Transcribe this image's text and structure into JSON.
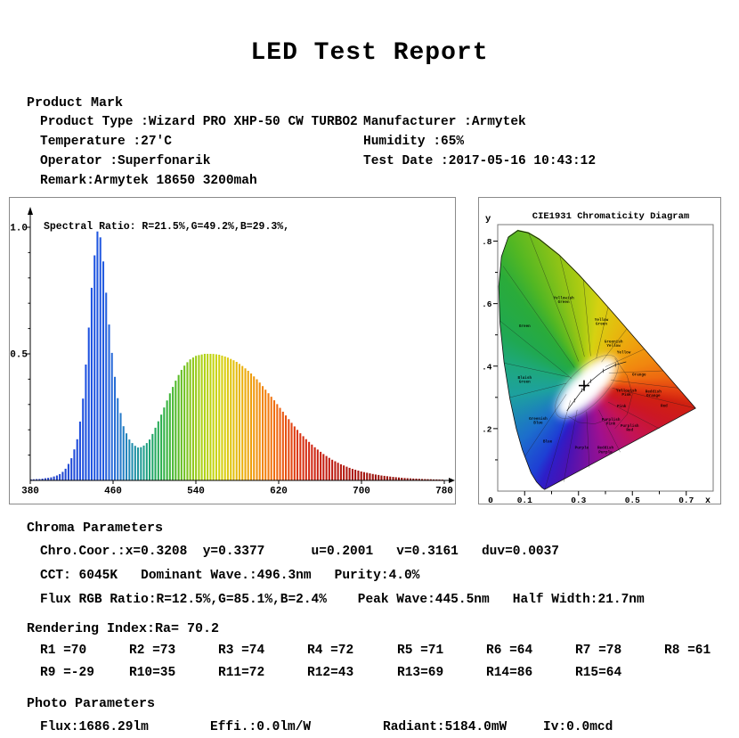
{
  "title": "LED Test Report",
  "product": {
    "heading": "Product Mark",
    "rows": [
      {
        "left": "Product Type :Wizard PRO XHP-50 CW TURBO2",
        "right": "Manufacturer :Armytek"
      },
      {
        "left": "Temperature :27'C",
        "right": "Humidity :65%"
      },
      {
        "left": "Operator :Superfonarik",
        "right": "Test Date :2017-05-16 10:43:12"
      },
      {
        "left": "Remark:Armytek 18650 3200mah",
        "right": ""
      }
    ]
  },
  "chroma": {
    "heading": "Chroma Parameters",
    "lines": [
      "Chro.Coor.:x=0.3208  y=0.3377      u=0.2001   v=0.3161   duv=0.0037",
      "CCT: 6045K   Dominant Wave.:496.3nm   Purity:4.0%",
      "Flux RGB Ratio:R=12.5%,G=85.1%,B=2.4%    Peak Wave:445.5nm   Half Width:21.7nm"
    ]
  },
  "rendering": {
    "heading": "Rendering Index:Ra= 70.2",
    "row1": [
      "R1 =70",
      "R2 =73",
      "R3 =74",
      "R4 =72",
      "R5 =71",
      "R6 =64",
      "R7 =78",
      "R8 =61"
    ],
    "row2": [
      "R9 =-29",
      "R10=35",
      "R11=72",
      "R12=43",
      "R13=69",
      "R14=86",
      "R15=64"
    ]
  },
  "photo": {
    "heading": "Photo Parameters",
    "items": [
      "Flux:1686.29lm",
      "Effi.:0.0lm/W",
      "Radiant:5184.0mW",
      "Iv:0.0mcd"
    ]
  },
  "chart_data": [
    {
      "type": "area",
      "name": "spectral-power-distribution",
      "annotation": "Spectral Ratio:  R=21.5%,G=49.2%,B=29.3%,",
      "xlim": [
        380,
        780
      ],
      "ylim": [
        0,
        1.05
      ],
      "x_ticks": [
        380,
        460,
        540,
        620,
        700,
        780
      ],
      "y_ticks": [
        0.5,
        1.0
      ],
      "peak_wavelength_nm": 445.5,
      "samples": [
        [
          380,
          0.004
        ],
        [
          390,
          0.006
        ],
        [
          400,
          0.012
        ],
        [
          405,
          0.018
        ],
        [
          410,
          0.028
        ],
        [
          415,
          0.05
        ],
        [
          420,
          0.09
        ],
        [
          425,
          0.155
        ],
        [
          430,
          0.28
        ],
        [
          435,
          0.52
        ],
        [
          440,
          0.8
        ],
        [
          444,
          0.97
        ],
        [
          446,
          1.0
        ],
        [
          449,
          0.93
        ],
        [
          452,
          0.8
        ],
        [
          456,
          0.62
        ],
        [
          460,
          0.46
        ],
        [
          465,
          0.31
        ],
        [
          470,
          0.215
        ],
        [
          475,
          0.165
        ],
        [
          480,
          0.14
        ],
        [
          484,
          0.13
        ],
        [
          488,
          0.132
        ],
        [
          492,
          0.145
        ],
        [
          496,
          0.165
        ],
        [
          500,
          0.2
        ],
        [
          505,
          0.245
        ],
        [
          510,
          0.295
        ],
        [
          515,
          0.345
        ],
        [
          520,
          0.39
        ],
        [
          525,
          0.43
        ],
        [
          530,
          0.46
        ],
        [
          535,
          0.48
        ],
        [
          540,
          0.492
        ],
        [
          548,
          0.5
        ],
        [
          556,
          0.5
        ],
        [
          562,
          0.497
        ],
        [
          570,
          0.487
        ],
        [
          578,
          0.472
        ],
        [
          585,
          0.452
        ],
        [
          592,
          0.428
        ],
        [
          600,
          0.395
        ],
        [
          608,
          0.355
        ],
        [
          616,
          0.315
        ],
        [
          624,
          0.272
        ],
        [
          632,
          0.23
        ],
        [
          640,
          0.19
        ],
        [
          648,
          0.157
        ],
        [
          656,
          0.127
        ],
        [
          664,
          0.102
        ],
        [
          672,
          0.081
        ],
        [
          680,
          0.064
        ],
        [
          690,
          0.047
        ],
        [
          700,
          0.035
        ],
        [
          710,
          0.026
        ],
        [
          720,
          0.019
        ],
        [
          730,
          0.014
        ],
        [
          740,
          0.01
        ],
        [
          750,
          0.0075
        ],
        [
          760,
          0.0055
        ],
        [
          770,
          0.004
        ],
        [
          780,
          0.003
        ]
      ],
      "color_stops": [
        [
          380,
          "#2a3fc0"
        ],
        [
          435,
          "#1c4fe0"
        ],
        [
          450,
          "#2059e0"
        ],
        [
          460,
          "#2a6cd8"
        ],
        [
          472,
          "#2383c0"
        ],
        [
          483,
          "#1e94a0"
        ],
        [
          492,
          "#1fa084"
        ],
        [
          500,
          "#23a862"
        ],
        [
          510,
          "#2fb143"
        ],
        [
          522,
          "#55bb28"
        ],
        [
          534,
          "#85c51a"
        ],
        [
          546,
          "#abd014"
        ],
        [
          558,
          "#c6d410"
        ],
        [
          568,
          "#d9cd0e"
        ],
        [
          578,
          "#e4bc0d"
        ],
        [
          588,
          "#ecaa0e"
        ],
        [
          598,
          "#f0940f"
        ],
        [
          608,
          "#f28010"
        ],
        [
          618,
          "#ee6810"
        ],
        [
          628,
          "#e64e11"
        ],
        [
          638,
          "#dc3812"
        ],
        [
          650,
          "#d22813"
        ],
        [
          662,
          "#c61f11"
        ],
        [
          676,
          "#b9190f"
        ],
        [
          692,
          "#aa140d"
        ],
        [
          710,
          "#9d110b"
        ],
        [
          740,
          "#92100a"
        ],
        [
          780,
          "#8a0e09"
        ]
      ]
    },
    {
      "type": "chromaticity",
      "name": "cie1931-diagram",
      "title": "CIE1931 Chromaticity Diagram",
      "xlabel": "x",
      "ylabel": "y",
      "origin_label": "0",
      "x_tick_values": [
        0.1,
        0.3,
        0.5,
        0.7
      ],
      "x_tick_labels": [
        "0.1",
        "0.3",
        "0.5",
        "0.7"
      ],
      "x_minor_ticks": [
        0.2,
        0.4,
        0.6
      ],
      "y_tick_values": [
        0.2,
        0.4,
        0.6,
        0.8
      ],
      "y_tick_labels": [
        ".2",
        ".4",
        ".6",
        ".8"
      ],
      "y_minor_ticks": [
        0.1,
        0.3,
        0.5,
        0.7
      ],
      "point": {
        "x": 0.3208,
        "y": 0.3377
      },
      "locus": [
        [
          0.1741,
          0.005
        ],
        [
          0.1644,
          0.0109
        ],
        [
          0.144,
          0.0297
        ],
        [
          0.1241,
          0.0578
        ],
        [
          0.0913,
          0.1327
        ],
        [
          0.0687,
          0.2007
        ],
        [
          0.0454,
          0.295
        ],
        [
          0.0235,
          0.4127
        ],
        [
          0.0082,
          0.5384
        ],
        [
          0.0039,
          0.6548
        ],
        [
          0.0139,
          0.7502
        ],
        [
          0.0389,
          0.812
        ],
        [
          0.0743,
          0.8338
        ],
        [
          0.1142,
          0.8262
        ],
        [
          0.1547,
          0.8059
        ],
        [
          0.2296,
          0.7543
        ],
        [
          0.3016,
          0.6923
        ],
        [
          0.3731,
          0.6245
        ],
        [
          0.4441,
          0.5547
        ],
        [
          0.5125,
          0.4866
        ],
        [
          0.5752,
          0.4242
        ],
        [
          0.627,
          0.3725
        ],
        [
          0.6658,
          0.334
        ],
        [
          0.6915,
          0.3083
        ],
        [
          0.714,
          0.2859
        ],
        [
          0.7347,
          0.2653
        ]
      ],
      "conic_stops": [
        [
          0,
          "#b9cf13"
        ],
        [
          8,
          "#d6d111"
        ],
        [
          27,
          "#e5bb0e"
        ],
        [
          50,
          "#efa00e"
        ],
        [
          71,
          "#f1860f"
        ],
        [
          84,
          "#ee6a10"
        ],
        [
          95,
          "#e23b11"
        ],
        [
          101,
          "#d02010"
        ],
        [
          115,
          "#cc1724"
        ],
        [
          137,
          "#c41355"
        ],
        [
          165,
          "#a01090"
        ],
        [
          176,
          "#851199"
        ],
        [
          195,
          "#4812b5"
        ],
        [
          205,
          "#2d1ec8"
        ],
        [
          211,
          "#1e3fd4"
        ],
        [
          230,
          "#1c6ecc"
        ],
        [
          261,
          "#1da0a0"
        ],
        [
          285,
          "#1ea87c"
        ],
        [
          301,
          "#1fa852"
        ],
        [
          322,
          "#2aab3a"
        ],
        [
          332,
          "#52b723"
        ],
        [
          346,
          "#8cc317"
        ],
        [
          355,
          "#aacb12"
        ],
        [
          360,
          "#b9cf13"
        ]
      ],
      "boundaries": [
        [
          0.275,
          0.36,
          0.008,
          0.545
        ],
        [
          0.285,
          0.395,
          0.02,
          0.72
        ],
        [
          0.3,
          0.415,
          0.115,
          0.826
        ],
        [
          0.322,
          0.43,
          0.23,
          0.754
        ],
        [
          0.345,
          0.432,
          0.318,
          0.677
        ],
        [
          0.366,
          0.425,
          0.41,
          0.589
        ],
        [
          0.385,
          0.413,
          0.48,
          0.52
        ],
        [
          0.4,
          0.398,
          0.545,
          0.455
        ],
        [
          0.413,
          0.378,
          0.615,
          0.385
        ],
        [
          0.42,
          0.355,
          0.67,
          0.33
        ],
        [
          0.425,
          0.33,
          0.735,
          0.265
        ],
        [
          0.41,
          0.285,
          0.6,
          0.2
        ],
        [
          0.375,
          0.26,
          0.455,
          0.125
        ],
        [
          0.33,
          0.255,
          0.34,
          0.075
        ],
        [
          0.295,
          0.26,
          0.245,
          0.03
        ],
        [
          0.27,
          0.29,
          0.175,
          0.005
        ],
        [
          0.255,
          0.31,
          0.1,
          0.11
        ],
        [
          0.255,
          0.345,
          0.047,
          0.3
        ],
        [
          0.265,
          0.365,
          0.024,
          0.41
        ]
      ],
      "rings": [
        [
          [
            0.435,
            0.425
          ],
          [
            0.48,
            0.37
          ],
          [
            0.5,
            0.31
          ],
          [
            0.48,
            0.245
          ],
          [
            0.435,
            0.2
          ]
        ],
        [
          [
            0.26,
            0.24
          ],
          [
            0.3,
            0.22
          ],
          [
            0.36,
            0.215
          ],
          [
            0.41,
            0.23
          ]
        ]
      ],
      "planckian": [
        [
          0.257,
          0.257
        ],
        [
          0.285,
          0.29
        ],
        [
          0.313,
          0.323
        ],
        [
          0.345,
          0.352
        ],
        [
          0.392,
          0.385
        ],
        [
          0.437,
          0.404
        ],
        [
          0.477,
          0.414
        ]
      ],
      "regions": [
        {
          "label": "Green",
          "x": 0.1,
          "y": 0.525
        },
        {
          "label": "Yellowish Green",
          "x": 0.245,
          "y": 0.615
        },
        {
          "label": "Yellow Green",
          "x": 0.385,
          "y": 0.545
        },
        {
          "label": "Greenish Yellow",
          "x": 0.43,
          "y": 0.475
        },
        {
          "label": "Yellow",
          "x": 0.468,
          "y": 0.44
        },
        {
          "label": "Orange",
          "x": 0.525,
          "y": 0.37
        },
        {
          "label": "Reddish Orange",
          "x": 0.578,
          "y": 0.315
        },
        {
          "label": "Yellowish Pink",
          "x": 0.478,
          "y": 0.318
        },
        {
          "label": "Pink",
          "x": 0.46,
          "y": 0.268
        },
        {
          "label": "Red",
          "x": 0.618,
          "y": 0.27
        },
        {
          "label": "Purplish Pink",
          "x": 0.42,
          "y": 0.225
        },
        {
          "label": "Purplish Red",
          "x": 0.49,
          "y": 0.205
        },
        {
          "label": "Reddish Purple",
          "x": 0.4,
          "y": 0.135
        },
        {
          "label": "Purple",
          "x": 0.312,
          "y": 0.135
        },
        {
          "label": "Blue",
          "x": 0.185,
          "y": 0.155
        },
        {
          "label": "Greenish Blue",
          "x": 0.15,
          "y": 0.228
        },
        {
          "label": "Bluish Green",
          "x": 0.1,
          "y": 0.36
        }
      ]
    }
  ]
}
